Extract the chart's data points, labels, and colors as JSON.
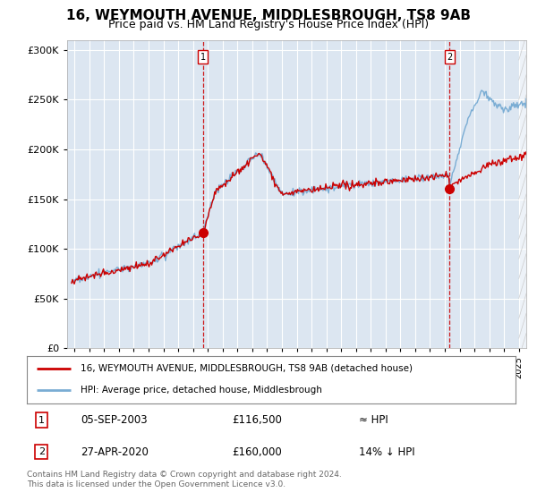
{
  "title1": "16, WEYMOUTH AVENUE, MIDDLESBROUGH, TS8 9AB",
  "title2": "Price paid vs. HM Land Registry's House Price Index (HPI)",
  "fig_bg_color": "#ffffff",
  "plot_bg_color": "#dce6f1",
  "legend_label1": "16, WEYMOUTH AVENUE, MIDDLESBROUGH, TS8 9AB (detached house)",
  "legend_label2": "HPI: Average price, detached house, Middlesbrough",
  "sale1_label": "1",
  "sale1_date": "05-SEP-2003",
  "sale1_price": "£116,500",
  "sale1_hpi": "≈ HPI",
  "sale2_label": "2",
  "sale2_date": "27-APR-2020",
  "sale2_price": "£160,000",
  "sale2_hpi": "14% ↓ HPI",
  "footer": "Contains HM Land Registry data © Crown copyright and database right 2024.\nThis data is licensed under the Open Government Licence v3.0.",
  "sale1_year": 2003.67,
  "sale1_value": 116500,
  "sale2_year": 2020.32,
  "sale2_value": 160000,
  "ylim_min": 0,
  "ylim_max": 310000,
  "xlim_min": 1994.5,
  "xlim_max": 2025.5,
  "red_line_color": "#cc0000",
  "blue_line_color": "#7aadd4",
  "marker_color": "#cc0000",
  "title1_fontsize": 11,
  "title2_fontsize": 9
}
